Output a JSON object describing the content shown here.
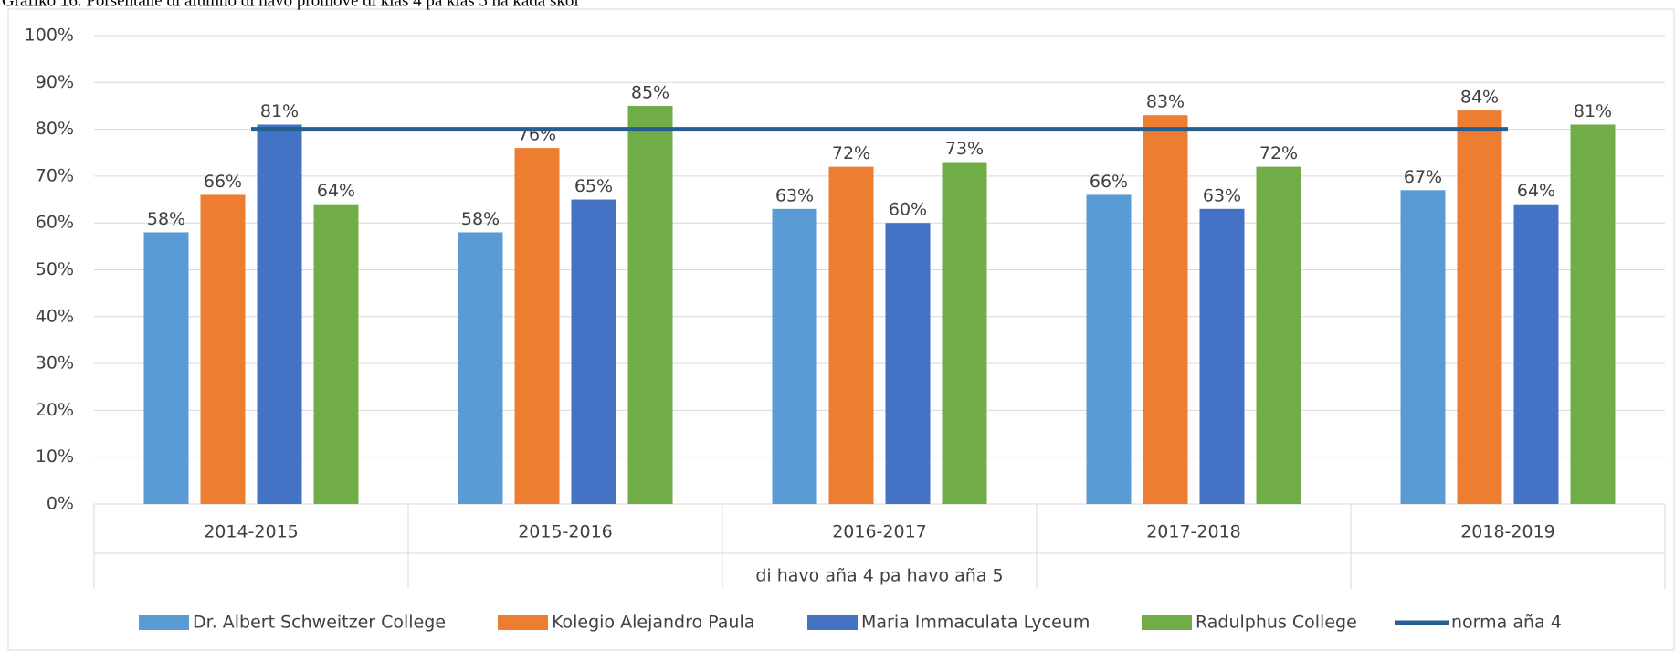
{
  "chart_data": {
    "type": "bar",
    "title": "Grafiko 16. Porsentahe di alumno di havo promove di klas 4 pa klas 5 na kada skol",
    "x_label": "di havo aña 4 pa havo aña 5",
    "categories": [
      "2014-2015",
      "2015-2016",
      "2016-2017",
      "2017-2018",
      "2018-2019"
    ],
    "series": [
      {
        "name": "Dr. Albert Schweitzer College",
        "color": "#5b9bd5",
        "type": "bar",
        "values": [
          58,
          58,
          63,
          66,
          67
        ],
        "value_labels": [
          "58%",
          "58%",
          "63%",
          "66%",
          "67%"
        ]
      },
      {
        "name": "Kolegio Alejandro Paula",
        "color": "#ed7d31",
        "type": "bar",
        "values": [
          66,
          76,
          72,
          83,
          84
        ],
        "value_labels": [
          "66%",
          "76%",
          "72%",
          "83%",
          "84%"
        ]
      },
      {
        "name": "Maria Immaculata Lyceum",
        "color": "#4472c4",
        "type": "bar",
        "values": [
          81,
          65,
          60,
          63,
          64
        ],
        "value_labels": [
          "81%",
          "65%",
          "60%",
          "63%",
          "64%"
        ]
      },
      {
        "name": "Radulphus College",
        "color": "#70ad47",
        "type": "bar",
        "values": [
          64,
          85,
          73,
          72,
          81
        ],
        "value_labels": [
          "64%",
          "85%",
          "73%",
          "72%",
          "81%"
        ]
      },
      {
        "name": "norma aña 4",
        "color": "#255e91",
        "type": "line",
        "values": [
          80,
          80,
          80,
          80,
          80
        ]
      }
    ],
    "ylim": [
      0,
      100
    ],
    "yticks": [
      {
        "value": 0,
        "label": "0%"
      },
      {
        "value": 10,
        "label": "10%"
      },
      {
        "value": 20,
        "label": "20%"
      },
      {
        "value": 30,
        "label": "30%"
      },
      {
        "value": 40,
        "label": "40%"
      },
      {
        "value": 50,
        "label": "50%"
      },
      {
        "value": 60,
        "label": "60%"
      },
      {
        "value": 70,
        "label": "70%"
      },
      {
        "value": 80,
        "label": "80%"
      },
      {
        "value": 90,
        "label": "90%"
      },
      {
        "value": 100,
        "label": "100%"
      }
    ],
    "grid": true,
    "legend": "bottom"
  }
}
